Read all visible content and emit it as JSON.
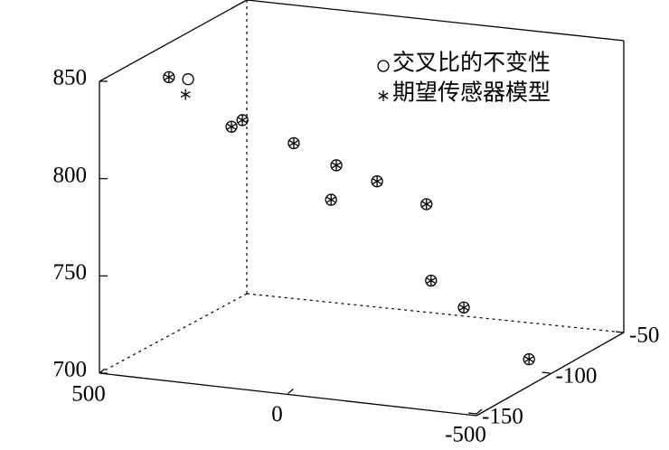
{
  "chart_data": {
    "type": "scatter3d",
    "xlim": [
      500,
      -500
    ],
    "xticks": [
      500,
      0,
      -500
    ],
    "ylim": [
      -150,
      -50
    ],
    "yticks": [
      -150,
      -100,
      -50
    ],
    "zlim": [
      700,
      850
    ],
    "zticks": [
      700,
      750,
      800,
      850
    ],
    "legend": "northeast",
    "series": [
      {
        "name": "交叉比的不变性",
        "marker": "circle",
        "color": "#000000",
        "x": [
          433,
          382,
          267,
          238,
          180,
          67,
          81,
          -41,
          -172,
          -106,
          -193,
          -405
        ],
        "y": [
          -120,
          -120,
          -120,
          -120,
          -100,
          -100,
          -100,
          -100,
          -100,
          -80,
          -80,
          -90
        ],
        "z": [
          841,
          841,
          819,
          823,
          804,
          795,
          777,
          789,
          780,
          731,
          719,
          701
        ]
      },
      {
        "name": "期望传感器模型",
        "marker": "asterisk",
        "color": "#000000",
        "x": [
          433,
          389,
          267,
          238,
          180,
          67,
          81,
          -41,
          -172,
          -106,
          -193,
          -405
        ],
        "y": [
          -120,
          -120,
          -120,
          -120,
          -100,
          -100,
          -100,
          -100,
          -100,
          -80,
          -80,
          -90
        ],
        "z": [
          841,
          833,
          819,
          823,
          804,
          795,
          777,
          789,
          780,
          731,
          719,
          701
        ]
      }
    ]
  }
}
